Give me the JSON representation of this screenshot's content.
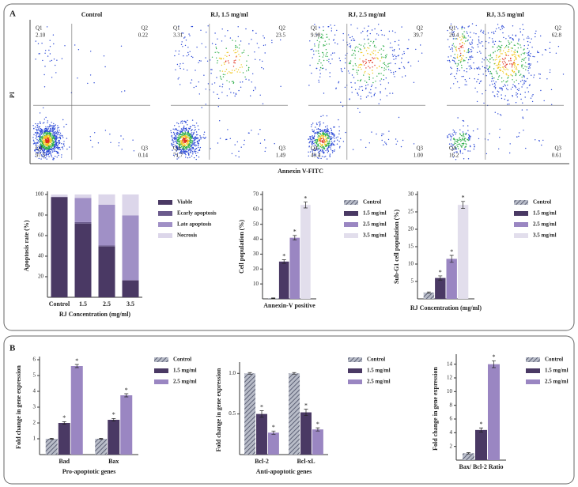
{
  "chart_data": [
    {
      "type": "flow",
      "panel_label": "A",
      "x_label": "Annexin V-FITC",
      "y_label": "PI",
      "quadrants": [
        "Q1",
        "Q2",
        "Q3",
        "Q4"
      ],
      "plots": [
        {
          "title": "Control",
          "values": [
            2.1,
            0.22,
            0.14,
            97.5
          ],
          "value_labels": [
            "2.10",
            "0.22",
            "0.14",
            "97.5"
          ]
        },
        {
          "title": "RJ, 1.5 mg/ml",
          "values": [
            3.31,
            23.5,
            1.49,
            71.7
          ],
          "value_labels": [
            "3.31",
            "23.5",
            "1.49",
            "71.7"
          ]
        },
        {
          "title": "RJ, 2.5 mg/ml",
          "values": [
            9.98,
            39.7,
            1.0,
            49.4
          ],
          "value_labels": [
            "9.98",
            "39.7",
            "1.00",
            "49.4"
          ]
        },
        {
          "title": "RJ, 3.5 mg/ml",
          "values": [
            20.4,
            62.8,
            0.61,
            16.2
          ],
          "value_labels": [
            "20.4",
            "62.8",
            "0.61",
            "16.2"
          ]
        }
      ]
    },
    {
      "type": "stacked",
      "y_label": "Apoptosis rate (%)",
      "x_label": "RJ Concentration (mg/ml)",
      "categories": [
        "Control",
        "1.5",
        "2.5",
        "3.5"
      ],
      "ylim": [
        0,
        100
      ],
      "yticks": [
        20,
        40,
        60,
        80,
        100
      ],
      "series": [
        {
          "name": "Viable",
          "color": "#4a3964",
          "values": [
            97.5,
            71.7,
            49.4,
            16.2
          ]
        },
        {
          "name": "Ecarly apoptosis",
          "color": "#6b5b8d",
          "values": [
            0.14,
            1.49,
            1.0,
            0.61
          ]
        },
        {
          "name": "Late apoptosis",
          "color": "#a090c6",
          "values": [
            0.22,
            23.5,
            39.7,
            62.8
          ]
        },
        {
          "name": "Necrosis",
          "color": "#dcd6ea",
          "values": [
            2.1,
            3.31,
            9.98,
            20.4
          ]
        }
      ]
    },
    {
      "type": "bar",
      "y_label": "Cell population (%)",
      "categories": [
        "Annexin-V positive"
      ],
      "significance": "*",
      "ylim": [
        0,
        70
      ],
      "yticks": [
        10,
        20,
        30,
        40,
        50,
        60,
        70
      ],
      "series": [
        {
          "name": "Control",
          "color": "#8a8fa3",
          "hatch": true,
          "values": [
            0.4
          ],
          "errors": [
            0.2
          ]
        },
        {
          "name": "1.5 mg/ml",
          "color": "#4a3964",
          "values": [
            25
          ],
          "errors": [
            1.2
          ]
        },
        {
          "name": "2.5 mg/ml",
          "color": "#9a86c2",
          "values": [
            41
          ],
          "errors": [
            1.5
          ]
        },
        {
          "name": "3.5 mg/ml",
          "color": "#e2deec",
          "values": [
            63
          ],
          "errors": [
            2
          ]
        }
      ]
    },
    {
      "type": "bar",
      "y_label": "Sub-G1 cell population (%)",
      "x_label": "RJ Concentration (mg/ml)",
      "categories": [
        null
      ],
      "significance": "*",
      "ylim": [
        0,
        30
      ],
      "yticks": [
        5,
        10,
        15,
        20,
        25,
        30
      ],
      "series": [
        {
          "name": "Control",
          "color": "#8a8fa3",
          "hatch": true,
          "values": [
            1.8
          ],
          "errors": [
            0.2
          ]
        },
        {
          "name": "1.5 mg/ml",
          "color": "#4a3964",
          "values": [
            6
          ],
          "errors": [
            0.6
          ]
        },
        {
          "name": "2.5 mg/ml",
          "color": "#9a86c2",
          "values": [
            11.5
          ],
          "errors": [
            1
          ]
        },
        {
          "name": "3.5 mg/ml",
          "color": "#e2deec",
          "values": [
            27
          ],
          "errors": [
            1
          ]
        }
      ]
    },
    {
      "type": "bar",
      "panel_label": "B",
      "y_label": "Fold change in gene expression",
      "x_label": "Pro-apoptotic genes",
      "significance": "*",
      "categories": [
        "Bad",
        "Bax"
      ],
      "ylim": [
        0,
        6
      ],
      "yticks": [
        1,
        2,
        3,
        4,
        5,
        6
      ],
      "series": [
        {
          "name": "Control",
          "color": "#8a8fa3",
          "hatch": true,
          "values": [
            1,
            1
          ],
          "errors": [
            0.03,
            0.03
          ]
        },
        {
          "name": "1.5 mg/ml",
          "color": "#4a3964",
          "values": [
            2,
            2.2
          ],
          "errors": [
            0.08,
            0.08
          ]
        },
        {
          "name": "2.5 mg/ml",
          "color": "#9a86c2",
          "values": [
            5.6,
            3.75
          ],
          "errors": [
            0.1,
            0.1
          ]
        }
      ]
    },
    {
      "type": "bar",
      "y_label": "Fold change in gene expression",
      "x_label": "Anti-apoptotic genes",
      "significance": "*",
      "categories": [
        "Bcl-2",
        "Bcl-xL"
      ],
      "ylim": [
        0,
        1.1
      ],
      "yticks": [
        0.5,
        {
          "value": 1,
          "label": "1.0"
        }
      ],
      "series": [
        {
          "name": "Control",
          "color": "#8a8fa3",
          "hatch": true,
          "values": [
            1,
            1
          ],
          "errors": [
            0.01,
            0.01
          ]
        },
        {
          "name": "1.5 mg/ml",
          "color": "#4a3964",
          "values": [
            0.5,
            0.52
          ],
          "errors": [
            0.04,
            0.04
          ]
        },
        {
          "name": "2.5 mg/ml",
          "color": "#9a86c2",
          "values": [
            0.27,
            0.31
          ],
          "errors": [
            0.02,
            0.02
          ]
        }
      ]
    },
    {
      "type": "bar",
      "y_label": "Fold change in gene expression",
      "significance": "*",
      "categories": [
        "Bax/ Bcl-2 Ratio"
      ],
      "ylim": [
        0,
        15
      ],
      "yticks": [
        2,
        4,
        6,
        8,
        10,
        12,
        14
      ],
      "series": [
        {
          "name": "Control",
          "color": "#8a8fa3",
          "hatch": true,
          "values": [
            1
          ],
          "errors": [
            0.1
          ]
        },
        {
          "name": "1.5 mg/ml",
          "color": "#4a3964",
          "values": [
            4.4
          ],
          "errors": [
            0.3
          ]
        },
        {
          "name": "2.5 mg/ml",
          "color": "#9a86c2",
          "values": [
            14
          ],
          "errors": [
            0.5
          ]
        }
      ]
    }
  ]
}
